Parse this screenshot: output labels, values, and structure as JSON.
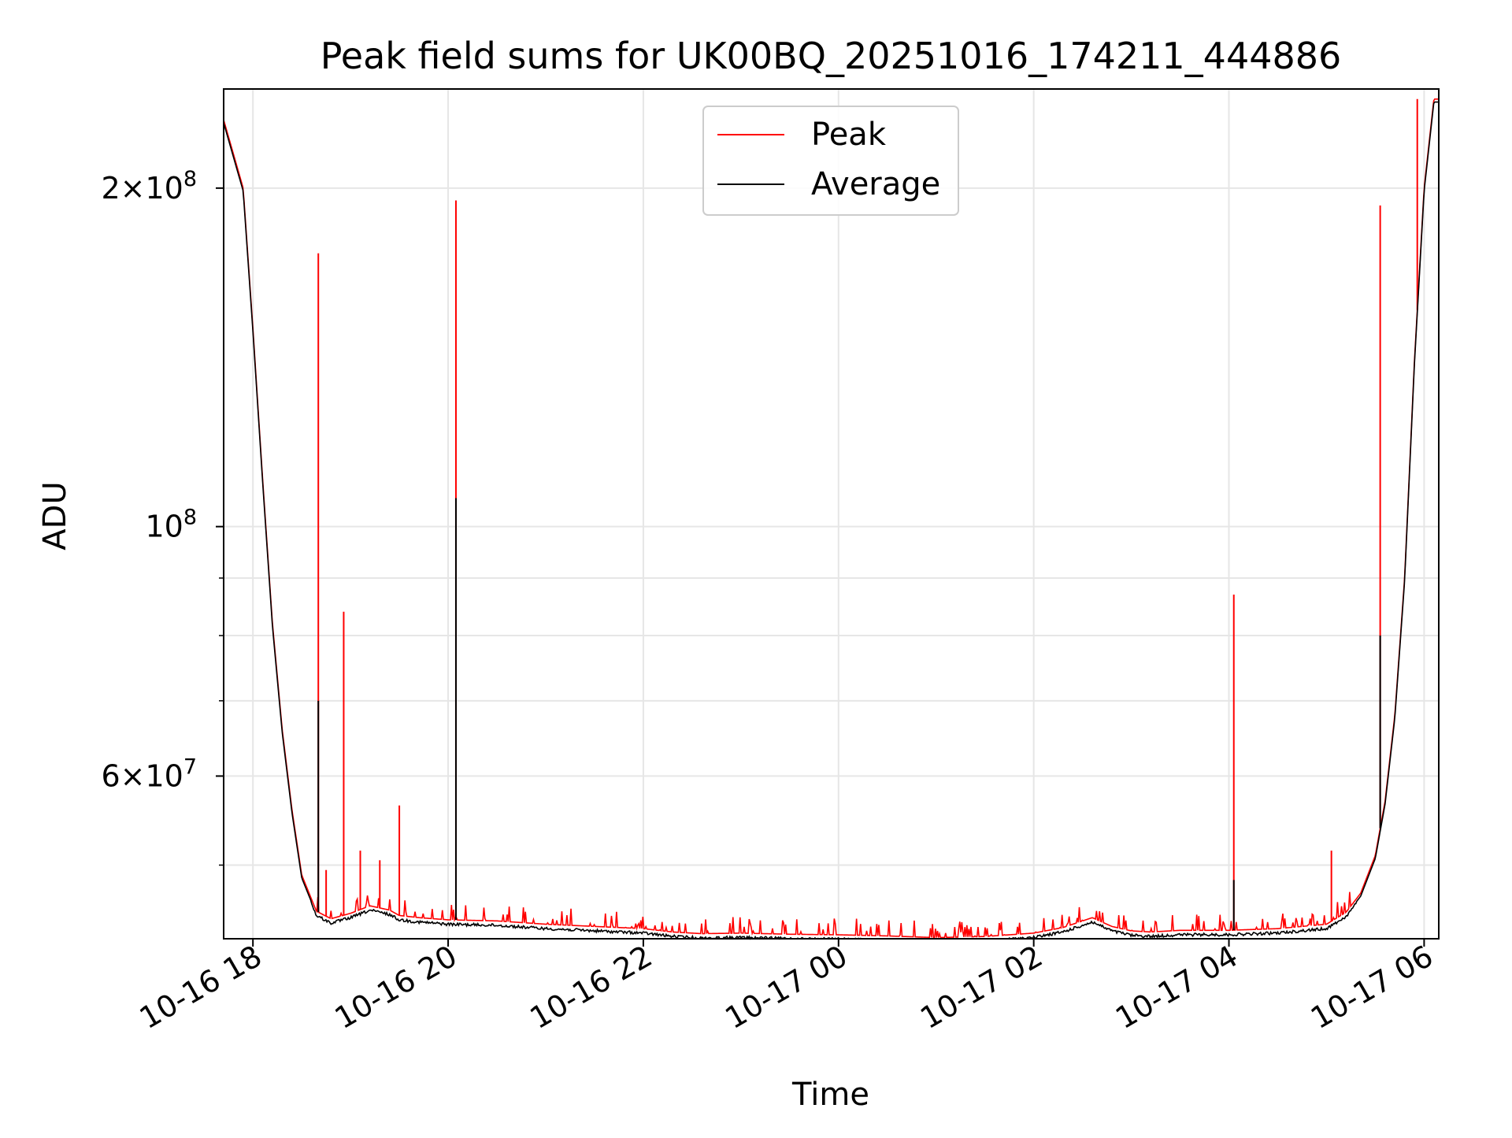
{
  "chart_data": {
    "type": "line",
    "title": "Peak field sums for UK00BQ_20251016_174211_444886",
    "xlabel": "Time",
    "ylabel": "ADU",
    "yscale": "log",
    "ylim": [
      43000000,
      245000000
    ],
    "xlim_hours": [
      -0.3,
      12.15
    ],
    "grid": true,
    "legend_position": "top-center",
    "x_ticks": [
      {
        "hour": 0,
        "label": "10-16 18"
      },
      {
        "hour": 2,
        "label": "10-16 20"
      },
      {
        "hour": 4,
        "label": "10-16 22"
      },
      {
        "hour": 6,
        "label": "10-17 00"
      },
      {
        "hour": 8,
        "label": "10-17 02"
      },
      {
        "hour": 10,
        "label": "10-17 04"
      },
      {
        "hour": 12,
        "label": "10-17 06"
      }
    ],
    "y_major_ticks": [
      {
        "value": 200000000,
        "base": "2×10",
        "exp": "8"
      },
      {
        "value": 100000000,
        "base": "10",
        "exp": "8"
      },
      {
        "value": 60000000,
        "base": "6×10",
        "exp": "7"
      }
    ],
    "y_minor_grid": [
      50000000,
      70000000,
      80000000,
      90000000
    ],
    "series": [
      {
        "name": "Peak",
        "color": "#ff0000",
        "style": "baseline plus spikes",
        "baseline_hours": [
          -0.3,
          -0.1,
          0.0,
          0.1,
          0.2,
          0.3,
          0.4,
          0.5,
          0.65,
          0.8,
          1.0,
          1.2,
          1.4,
          1.5,
          1.7,
          2.0,
          2.5,
          3.0,
          3.5,
          4.0,
          4.3,
          4.6,
          5.0,
          5.5,
          6.0,
          6.5,
          7.0,
          7.5,
          8.0,
          8.3,
          8.6,
          8.8,
          9.0,
          9.2,
          9.5,
          10.0,
          10.5,
          11.0,
          11.2,
          11.35,
          11.5,
          11.6,
          11.7,
          11.8,
          11.9,
          12.0,
          12.1
        ],
        "baseline_values": [
          230000000,
          200000000,
          150000000,
          110000000,
          82000000,
          66000000,
          56000000,
          49000000,
          45500000,
          44800000,
          45300000,
          46000000,
          45600000,
          45100000,
          44900000,
          44700000,
          44600000,
          44300000,
          44100000,
          43900000,
          43600000,
          43450000,
          43500000,
          43400000,
          43350000,
          43250000,
          43100000,
          43200000,
          43500000,
          44000000,
          44900000,
          44100000,
          43700000,
          43600000,
          43750000,
          43750000,
          43900000,
          44300000,
          45400000,
          47200000,
          51000000,
          57000000,
          68000000,
          90000000,
          140000000,
          200000000,
          240000000
        ],
        "spikes": [
          {
            "hour": 0.67,
            "value": 175000000
          },
          {
            "hour": 0.93,
            "value": 84000000
          },
          {
            "hour": 0.75,
            "value": 49500000
          },
          {
            "hour": 1.1,
            "value": 51500000
          },
          {
            "hour": 1.3,
            "value": 50500000
          },
          {
            "hour": 1.5,
            "value": 56500000
          },
          {
            "hour": 2.08,
            "value": 195000000
          },
          {
            "hour": 10.05,
            "value": 87000000
          },
          {
            "hour": 11.05,
            "value": 51500000
          },
          {
            "hour": 11.55,
            "value": 193000000
          },
          {
            "hour": 11.93,
            "value": 240000000
          }
        ]
      },
      {
        "name": "Average",
        "color": "#000000",
        "style": "line",
        "values_same_as_peak_baseline": true,
        "spikes": [
          {
            "hour": 0.67,
            "value": 70000000
          },
          {
            "hour": 2.08,
            "value": 106000000
          },
          {
            "hour": 10.05,
            "value": 48500000
          },
          {
            "hour": 11.55,
            "value": 80000000
          }
        ]
      }
    ]
  }
}
